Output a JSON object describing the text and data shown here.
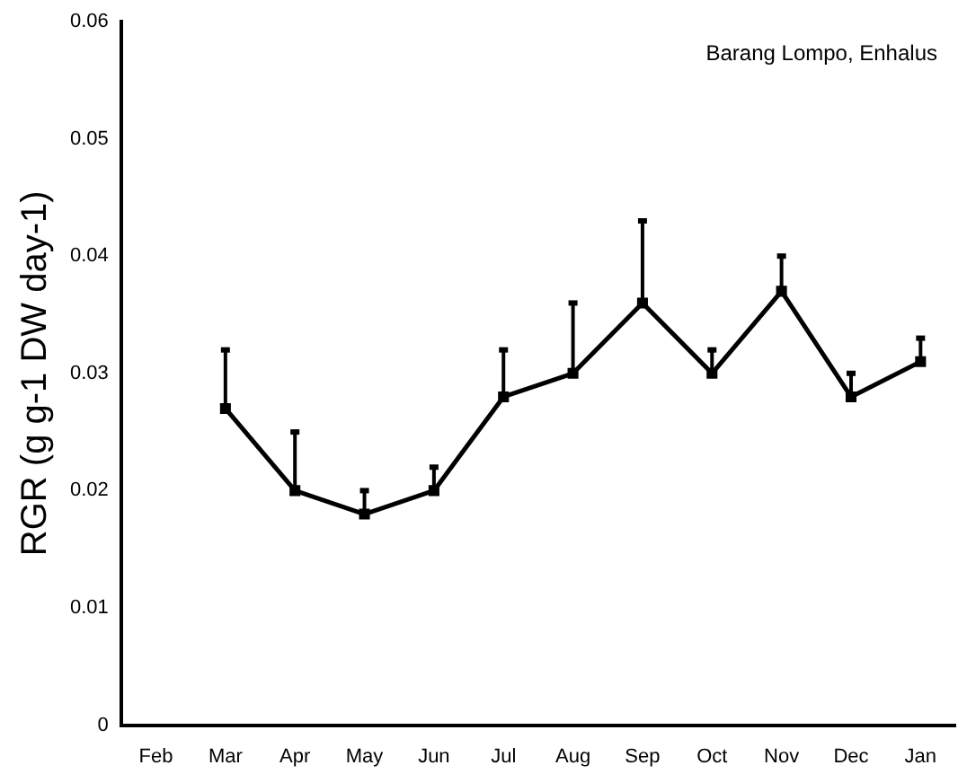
{
  "chart_data": {
    "type": "line",
    "ylabel": "RGR (g g-1 DW day-1)",
    "annotations": [
      "Barang Lompo, Enhalus"
    ],
    "categories": [
      "Feb",
      "Mar",
      "Apr",
      "May",
      "Jun",
      "Jul",
      "Aug",
      "Sep",
      "Oct",
      "Nov",
      "Dec",
      "Jan"
    ],
    "series": [
      {
        "color": "#000000",
        "values": [
          null,
          0.027,
          0.02,
          0.018,
          0.02,
          0.028,
          0.03,
          0.036,
          0.03,
          0.037,
          0.028,
          0.031
        ],
        "errors": [
          null,
          [
            0.027,
            0.032
          ],
          [
            0.02,
            0.025
          ],
          [
            0.018,
            0.02
          ],
          [
            0.02,
            0.022
          ],
          [
            0.028,
            0.032
          ],
          [
            0.03,
            0.036
          ],
          [
            0.036,
            0.043
          ],
          [
            0.03,
            0.032
          ],
          [
            0.037,
            0.04
          ],
          [
            0.028,
            0.03
          ],
          [
            0.031,
            0.033
          ]
        ]
      }
    ],
    "ylim": [
      0,
      0.06
    ],
    "yticks": [
      0,
      0.01,
      0.02,
      0.03,
      0.04,
      0.05,
      0.06
    ],
    "grid": false,
    "legend": false,
    "marker": "square",
    "line_style": "solid"
  }
}
